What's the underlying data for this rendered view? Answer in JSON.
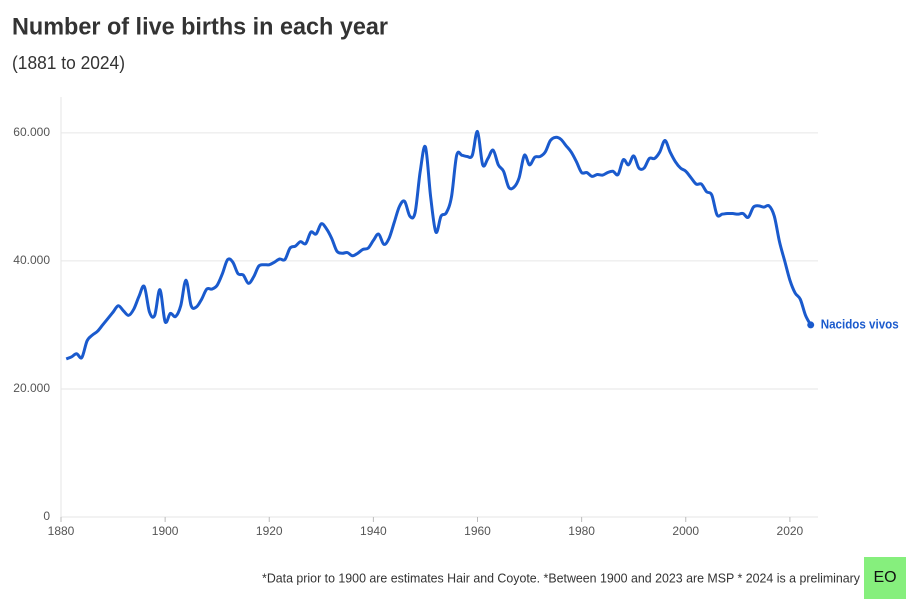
{
  "chart_data": {
    "type": "line",
    "title": "Number of live births in each year",
    "subtitle": "(1881 to 2024)",
    "note": "*Data prior to 1900 are estimates Hair and Coyote. *Between 1900 and 2023 are MSP * 2024 is a preliminary",
    "logo": "EO",
    "x": [
      1881,
      1882,
      1883,
      1884,
      1885,
      1886,
      1887,
      1888,
      1889,
      1890,
      1891,
      1892,
      1893,
      1894,
      1895,
      1896,
      1897,
      1898,
      1899,
      1900,
      1901,
      1902,
      1903,
      1904,
      1905,
      1906,
      1907,
      1908,
      1909,
      1910,
      1911,
      1912,
      1913,
      1914,
      1915,
      1916,
      1917,
      1918,
      1919,
      1920,
      1921,
      1922,
      1923,
      1924,
      1925,
      1926,
      1927,
      1928,
      1929,
      1930,
      1931,
      1932,
      1933,
      1934,
      1935,
      1936,
      1937,
      1938,
      1939,
      1940,
      1941,
      1942,
      1943,
      1944,
      1945,
      1946,
      1947,
      1948,
      1949,
      1950,
      1951,
      1952,
      1953,
      1954,
      1955,
      1956,
      1957,
      1958,
      1959,
      1960,
      1961,
      1962,
      1963,
      1964,
      1965,
      1966,
      1967,
      1968,
      1969,
      1970,
      1971,
      1972,
      1973,
      1974,
      1975,
      1976,
      1977,
      1978,
      1979,
      1980,
      1981,
      1982,
      1983,
      1984,
      1985,
      1986,
      1987,
      1988,
      1989,
      1990,
      1991,
      1992,
      1993,
      1994,
      1995,
      1996,
      1997,
      1998,
      1999,
      2000,
      2001,
      2002,
      2003,
      2004,
      2005,
      2006,
      2007,
      2008,
      2009,
      2010,
      2011,
      2012,
      2013,
      2014,
      2015,
      2016,
      2017,
      2018,
      2019,
      2020,
      2021,
      2022,
      2023,
      2024
    ],
    "series": [
      {
        "name": "Nacidos vivos",
        "color": "#1a5acd",
        "values": [
          24700,
          25000,
          25500,
          24900,
          27500,
          28400,
          29000,
          30000,
          31000,
          32000,
          33000,
          32200,
          31500,
          32500,
          34500,
          36000,
          32000,
          31500,
          35500,
          30500,
          31800,
          31300,
          33000,
          37000,
          33000,
          32800,
          34000,
          35600,
          35600,
          36200,
          38000,
          40200,
          39800,
          38000,
          37800,
          36500,
          37500,
          39200,
          39400,
          39400,
          39800,
          40300,
          40200,
          42000,
          42300,
          43000,
          42700,
          44500,
          44200,
          45800,
          45000,
          43500,
          41500,
          41200,
          41300,
          40800,
          41200,
          41800,
          42000,
          43200,
          44200,
          42600,
          43500,
          46000,
          48500,
          49300,
          47000,
          47500,
          54000,
          57800,
          50000,
          44500,
          47000,
          47500,
          50000,
          56500,
          56500,
          56300,
          56500,
          60200,
          55000,
          56000,
          57300,
          55000,
          54000,
          51500,
          51500,
          53000,
          56500,
          55000,
          56200,
          56300,
          57000,
          58800,
          59300,
          59000,
          58000,
          57000,
          55500,
          53800,
          53800,
          53200,
          53500,
          53400,
          53800,
          54000,
          53500,
          55800,
          55000,
          56400,
          54500,
          54500,
          56000,
          56000,
          57000,
          58800,
          57000,
          55500,
          54500,
          54000,
          53000,
          52000,
          52000,
          50800,
          50300,
          47200,
          47300,
          47400,
          47400,
          47300,
          47400,
          46800,
          48400,
          48600,
          48400,
          48600,
          47000,
          43000,
          40000,
          37000,
          35000,
          34000,
          31500,
          30000
        ]
      }
    ],
    "xlim": [
      1880,
      2025.4
    ],
    "xticks": [
      1880,
      1900,
      1920,
      1940,
      1960,
      1980,
      2000,
      2020
    ],
    "ylim": [
      0,
      65600
    ],
    "yticks": [
      0,
      {
        "value": 20000,
        "label": "20.000"
      },
      {
        "value": 40000,
        "label": "40.000"
      },
      {
        "value": 60000,
        "label": "60.000"
      }
    ],
    "grid": true
  }
}
